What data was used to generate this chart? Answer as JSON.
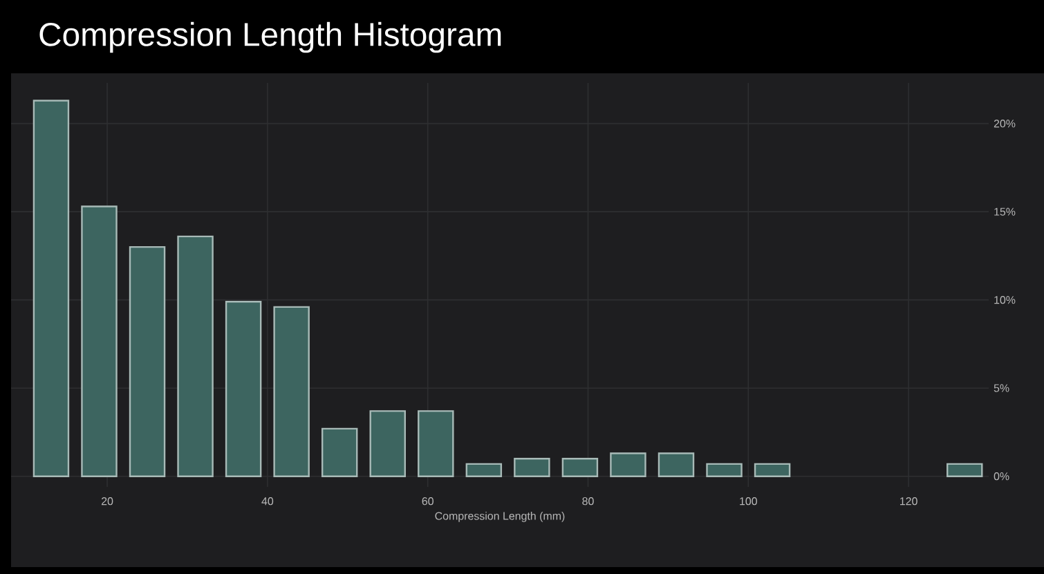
{
  "chart_data": {
    "type": "histogram",
    "title": "Compression Length Histogram",
    "xlabel": "Compression Length (mm)",
    "bins": [
      10,
      16,
      22,
      28,
      34,
      40,
      46,
      52,
      58,
      64,
      70,
      76,
      82,
      88,
      94,
      100,
      106,
      112,
      118,
      124,
      130
    ],
    "values": [
      21.3,
      15.3,
      13.0,
      13.6,
      9.9,
      9.6,
      2.7,
      3.7,
      3.7,
      0.7,
      1.0,
      1.0,
      1.3,
      1.3,
      0.7,
      0.7,
      0,
      0,
      0,
      0.7
    ],
    "color": "#3d6560",
    "xlim": [
      8,
      130
    ],
    "xticks": [
      20,
      40,
      60,
      80,
      100,
      120
    ],
    "ylim": [
      -0.6,
      22.3
    ],
    "yticks": [
      {
        "value": 0,
        "label": "0%"
      },
      {
        "value": 5,
        "label": "5%"
      },
      {
        "value": 10,
        "label": "10%"
      },
      {
        "value": 15,
        "label": "15%"
      },
      {
        "value": 20,
        "label": "20%"
      }
    ],
    "grid": true
  }
}
